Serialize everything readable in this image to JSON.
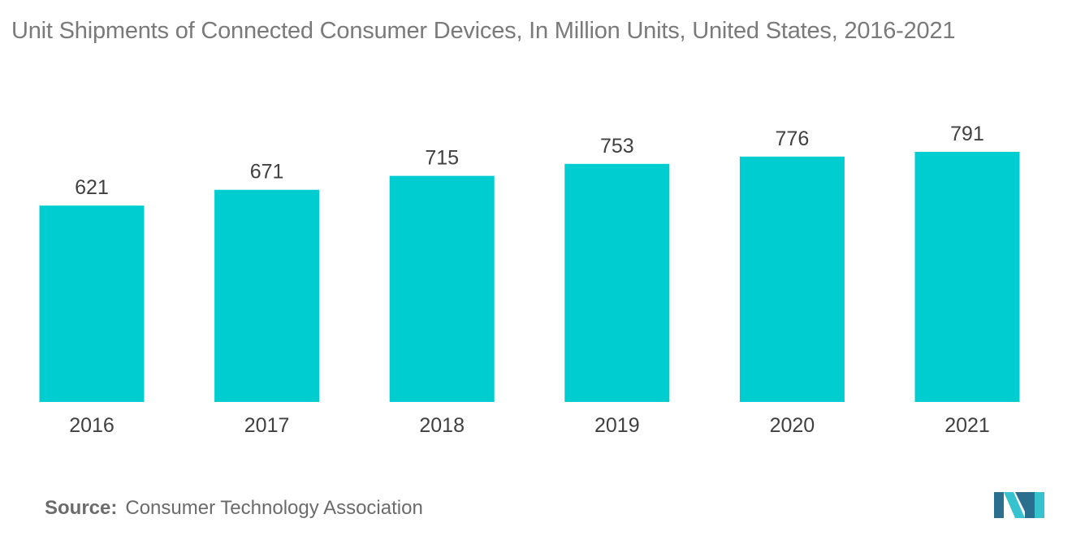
{
  "title": "Unit Shipments of Connected Consumer Devices, In Million Units, United States, 2016-2021",
  "source_label": "Source:",
  "source_text": "Consumer Technology Association",
  "colors": {
    "bar": "#00cdd0",
    "title": "#7a7a7a",
    "label": "#404040",
    "logo_dark": "#2b6f8f",
    "logo_light": "#36c3cf"
  },
  "chart_data": {
    "type": "bar",
    "title": "Unit Shipments of Connected Consumer Devices, In Million Units, United States, 2016-2021",
    "categories": [
      "2016",
      "2017",
      "2018",
      "2019",
      "2020",
      "2021"
    ],
    "values": [
      621,
      671,
      715,
      753,
      776,
      791
    ],
    "xlabel": "",
    "ylabel": "",
    "ylim": [
      0,
      791
    ],
    "grid": false,
    "legend": "none"
  }
}
